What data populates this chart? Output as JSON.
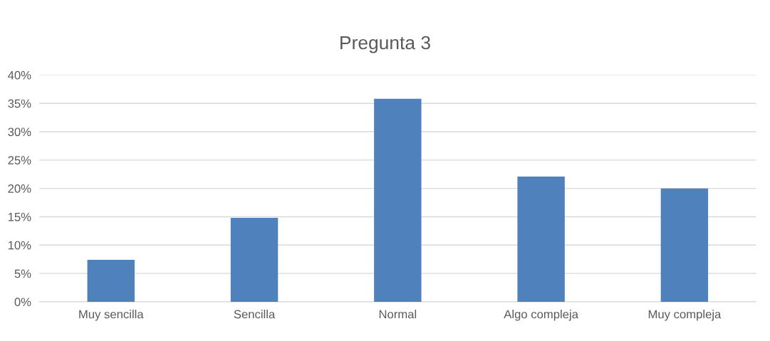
{
  "chart_data": {
    "type": "bar",
    "title": "Pregunta 3",
    "categories": [
      "Muy sencilla",
      "Sencilla",
      "Normal",
      "Algo compleja",
      "Muy compleja"
    ],
    "values": [
      7.4,
      14.8,
      35.8,
      22.1,
      20.0
    ],
    "color": "#4f81bd",
    "ylim": [
      0,
      40
    ],
    "yticks": [
      {
        "value": 0,
        "label": "0%"
      },
      {
        "value": 5,
        "label": "5%"
      },
      {
        "value": 10,
        "label": "10%"
      },
      {
        "value": 15,
        "label": "15%"
      },
      {
        "value": 20,
        "label": "20%"
      },
      {
        "value": 25,
        "label": "25%"
      },
      {
        "value": 30,
        "label": "30%"
      },
      {
        "value": 35,
        "label": "35%"
      },
      {
        "value": 40,
        "label": "40%"
      }
    ],
    "grid": "y",
    "legend": false
  }
}
